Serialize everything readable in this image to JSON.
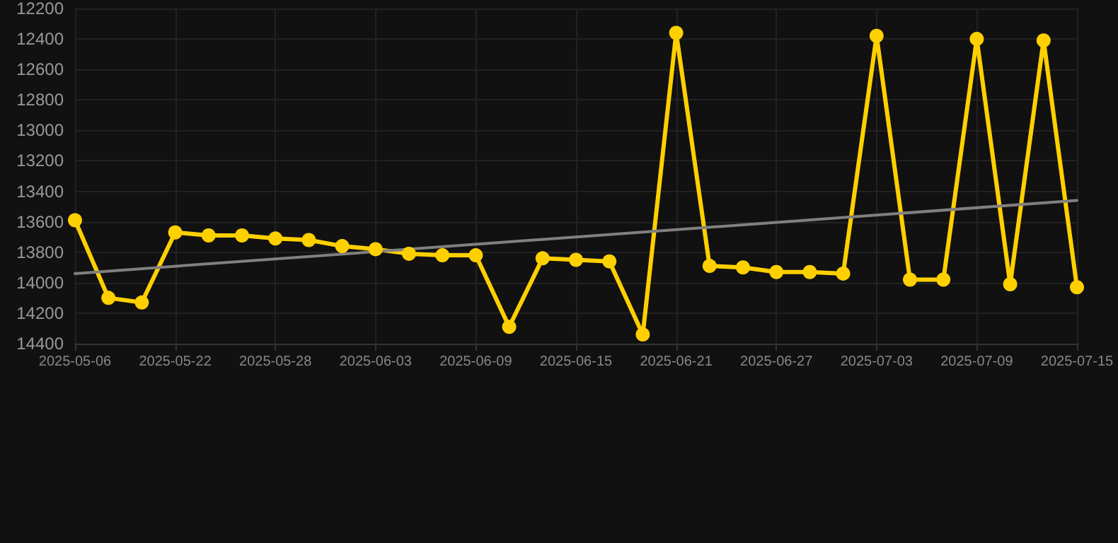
{
  "chart_data": {
    "type": "line",
    "categories": [
      "2025-05-06",
      null,
      null,
      "2025-05-22",
      null,
      null,
      "2025-05-28",
      null,
      null,
      "2025-06-03",
      null,
      null,
      "2025-06-09",
      null,
      null,
      "2025-06-15",
      null,
      null,
      "2025-06-21",
      null,
      null,
      "2025-06-27",
      null,
      null,
      "2025-07-03",
      null,
      null,
      "2025-07-09",
      null,
      null,
      "2025-07-15"
    ],
    "series": [
      {
        "color": "#ffd000",
        "values": [
          13590,
          14100,
          14130,
          13670,
          13690,
          13690,
          13710,
          13720,
          13760,
          13780,
          13810,
          13820,
          13820,
          14290,
          13840,
          13850,
          13860,
          14340,
          12360,
          13890,
          13900,
          13930,
          13930,
          13940,
          12380,
          13980,
          13980,
          12400,
          14010,
          12410,
          14030
        ],
        "marker": "circle"
      },
      {
        "type": "line",
        "color": "#808080",
        "values": [
          13940,
          null,
          null,
          null,
          null,
          null,
          null,
          null,
          null,
          null,
          null,
          null,
          null,
          null,
          null,
          null,
          null,
          null,
          null,
          null,
          null,
          null,
          null,
          null,
          null,
          null,
          null,
          null,
          null,
          null,
          13460
        ],
        "marker": "none"
      }
    ],
    "ylim": [
      14400,
      12200
    ],
    "yticks": [
      12200,
      12400,
      12600,
      12800,
      13000,
      13200,
      13400,
      13600,
      13800,
      14000,
      14200,
      14400
    ],
    "grid": true,
    "line_style": "solid"
  }
}
